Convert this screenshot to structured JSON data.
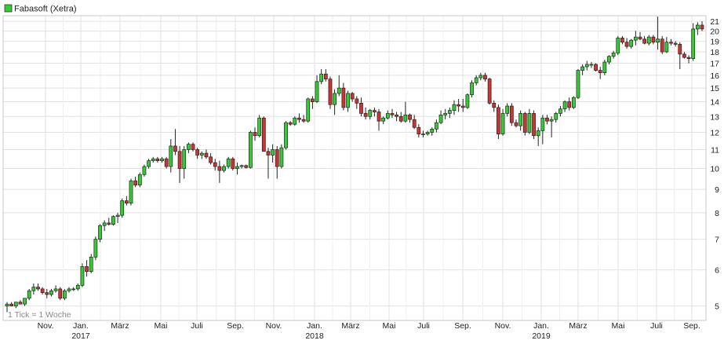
{
  "chart_data": {
    "type": "candlestick",
    "title": "Fabasoft (Xetra)",
    "interval_note": "1 Tick = 1 Woche",
    "y_scale": "log",
    "ylim": [
      4.65,
      21.6
    ],
    "y_ticks": [
      5,
      6,
      7,
      8,
      9,
      10,
      11,
      12,
      13,
      14,
      15,
      16,
      17,
      18,
      19,
      20,
      21
    ],
    "grid": true,
    "legend_swatch_color": "#33cc33",
    "up_color": "#33cc33",
    "down_color": "#cc3333",
    "x_ticks": [
      {
        "label": "Nov.",
        "year": ""
      },
      {
        "label": "Jan.",
        "year": "2017"
      },
      {
        "label": "März",
        "year": ""
      },
      {
        "label": "Mai",
        "year": ""
      },
      {
        "label": "Juli",
        "year": ""
      },
      {
        "label": "Sep.",
        "year": ""
      },
      {
        "label": "Nov.",
        "year": ""
      },
      {
        "label": "Jan.",
        "year": "2018"
      },
      {
        "label": "März",
        "year": ""
      },
      {
        "label": "Mai",
        "year": ""
      },
      {
        "label": "Juli",
        "year": ""
      },
      {
        "label": "Sep.",
        "year": ""
      },
      {
        "label": "Nov.",
        "year": ""
      },
      {
        "label": "Jan.",
        "year": "2019"
      },
      {
        "label": "März",
        "year": ""
      },
      {
        "label": "Mai",
        "year": ""
      },
      {
        "label": "Juli",
        "year": ""
      },
      {
        "label": "Sep.",
        "year": ""
      }
    ],
    "candles_ohlc": [
      [
        5.0,
        5.1,
        4.85,
        5.05
      ],
      [
        5.05,
        5.1,
        5.0,
        5.0
      ],
      [
        5.0,
        5.1,
        4.95,
        5.1
      ],
      [
        5.1,
        5.15,
        5.05,
        5.05
      ],
      [
        5.05,
        5.2,
        5.0,
        5.2
      ],
      [
        5.2,
        5.45,
        5.15,
        5.4
      ],
      [
        5.4,
        5.6,
        5.3,
        5.5
      ],
      [
        5.5,
        5.6,
        5.4,
        5.45
      ],
      [
        5.45,
        5.5,
        5.3,
        5.35
      ],
      [
        5.35,
        5.45,
        5.2,
        5.3
      ],
      [
        5.3,
        5.45,
        5.25,
        5.4
      ],
      [
        5.4,
        5.55,
        5.35,
        5.45
      ],
      [
        5.45,
        5.5,
        5.15,
        5.2
      ],
      [
        5.2,
        5.45,
        5.15,
        5.4
      ],
      [
        5.4,
        5.5,
        5.35,
        5.45
      ],
      [
        5.45,
        5.5,
        5.4,
        5.45
      ],
      [
        5.45,
        5.6,
        5.4,
        5.55
      ],
      [
        5.55,
        6.2,
        5.5,
        6.1
      ],
      [
        6.1,
        6.3,
        5.8,
        5.95
      ],
      [
        5.95,
        6.5,
        5.9,
        6.4
      ],
      [
        6.4,
        7.1,
        6.3,
        7.0
      ],
      [
        7.0,
        7.55,
        6.9,
        7.5
      ],
      [
        7.5,
        7.7,
        7.3,
        7.6
      ],
      [
        7.6,
        7.8,
        7.5,
        7.55
      ],
      [
        7.55,
        7.9,
        7.5,
        7.85
      ],
      [
        7.85,
        8.0,
        7.6,
        7.9
      ],
      [
        7.9,
        8.6,
        7.8,
        8.5
      ],
      [
        8.5,
        8.7,
        8.3,
        8.4
      ],
      [
        8.4,
        9.5,
        8.3,
        9.4
      ],
      [
        9.4,
        9.6,
        9.1,
        9.2
      ],
      [
        9.2,
        9.8,
        9.1,
        9.7
      ],
      [
        9.7,
        10.2,
        9.6,
        10.1
      ],
      [
        10.1,
        10.5,
        10.0,
        10.4
      ],
      [
        10.4,
        10.6,
        10.3,
        10.5
      ],
      [
        10.5,
        10.6,
        10.3,
        10.4
      ],
      [
        10.4,
        10.6,
        10.3,
        10.5
      ],
      [
        10.5,
        10.6,
        10.0,
        10.1
      ],
      [
        10.1,
        11.6,
        9.8,
        11.2
      ],
      [
        11.2,
        12.2,
        10.7,
        10.9
      ],
      [
        10.9,
        11.2,
        9.3,
        10.0
      ],
      [
        10.0,
        11.2,
        9.5,
        11.0
      ],
      [
        11.0,
        11.4,
        10.8,
        11.3
      ],
      [
        11.3,
        11.4,
        10.9,
        11.0
      ],
      [
        11.0,
        11.1,
        10.5,
        10.7
      ],
      [
        10.7,
        10.9,
        10.5,
        10.8
      ],
      [
        10.8,
        11.0,
        10.5,
        10.6
      ],
      [
        10.6,
        10.8,
        10.2,
        10.3
      ],
      [
        10.3,
        10.5,
        9.9,
        10.1
      ],
      [
        10.1,
        10.4,
        9.3,
        9.9
      ],
      [
        9.9,
        10.2,
        9.8,
        10.1
      ],
      [
        10.1,
        10.6,
        10.0,
        10.5
      ],
      [
        10.5,
        10.6,
        9.9,
        10.0
      ],
      [
        10.0,
        10.3,
        9.7,
        10.1
      ],
      [
        10.1,
        10.2,
        10.0,
        10.15
      ],
      [
        10.15,
        10.2,
        10.0,
        10.05
      ],
      [
        10.05,
        12.1,
        10.0,
        12.0
      ],
      [
        12.0,
        12.3,
        11.5,
        11.8
      ],
      [
        11.8,
        13.1,
        11.7,
        12.9
      ],
      [
        12.9,
        13.0,
        11.0,
        10.9
      ],
      [
        10.9,
        11.1,
        9.5,
        10.7
      ],
      [
        10.7,
        11.3,
        10.3,
        11.0
      ],
      [
        11.0,
        11.2,
        9.5,
        10.1
      ],
      [
        10.1,
        11.3,
        10.0,
        11.1
      ],
      [
        11.1,
        12.7,
        11.0,
        12.6
      ],
      [
        12.6,
        12.7,
        12.4,
        12.5
      ],
      [
        12.5,
        13.0,
        12.4,
        12.9
      ],
      [
        12.9,
        13.2,
        12.6,
        12.8
      ],
      [
        12.8,
        13.1,
        12.6,
        12.7
      ],
      [
        12.7,
        14.3,
        12.6,
        14.2
      ],
      [
        14.2,
        14.4,
        13.5,
        14.0
      ],
      [
        14.0,
        16.0,
        13.9,
        15.5
      ],
      [
        15.5,
        16.5,
        15.3,
        16.1
      ],
      [
        16.1,
        16.5,
        15.5,
        15.7
      ],
      [
        15.7,
        15.9,
        13.5,
        13.8
      ],
      [
        13.8,
        14.9,
        13.1,
        14.6
      ],
      [
        14.6,
        16.0,
        14.4,
        15.0
      ],
      [
        15.0,
        15.4,
        13.4,
        13.6
      ],
      [
        13.6,
        14.8,
        13.3,
        14.6
      ],
      [
        14.6,
        14.7,
        14.0,
        14.2
      ],
      [
        14.2,
        14.4,
        13.5,
        13.9
      ],
      [
        13.9,
        14.3,
        13.0,
        13.2
      ],
      [
        13.2,
        13.6,
        12.8,
        13.0
      ],
      [
        13.0,
        13.5,
        12.8,
        13.4
      ],
      [
        13.4,
        13.6,
        13.0,
        13.3
      ],
      [
        13.3,
        13.5,
        12.1,
        12.7
      ],
      [
        12.7,
        13.0,
        12.5,
        12.9
      ],
      [
        12.9,
        13.4,
        12.8,
        13.2
      ],
      [
        13.2,
        13.5,
        12.9,
        13.1
      ],
      [
        13.1,
        13.3,
        12.7,
        13.0
      ],
      [
        13.0,
        13.3,
        12.6,
        12.7
      ],
      [
        12.7,
        14.0,
        12.6,
        13.1
      ],
      [
        13.1,
        13.2,
        12.6,
        12.8
      ],
      [
        12.8,
        13.1,
        12.2,
        12.3
      ],
      [
        12.3,
        12.5,
        11.7,
        11.9
      ],
      [
        11.9,
        12.1,
        11.7,
        11.9
      ],
      [
        11.9,
        12.1,
        11.8,
        12.0
      ],
      [
        12.0,
        12.3,
        11.8,
        12.2
      ],
      [
        12.2,
        12.8,
        12.0,
        12.6
      ],
      [
        12.6,
        13.4,
        12.5,
        13.1
      ],
      [
        13.1,
        13.5,
        12.8,
        13.2
      ],
      [
        13.2,
        13.6,
        12.9,
        13.4
      ],
      [
        13.4,
        14.1,
        13.1,
        13.8
      ],
      [
        13.8,
        14.2,
        13.3,
        13.7
      ],
      [
        13.7,
        14.2,
        13.3,
        13.6
      ],
      [
        13.6,
        14.6,
        13.5,
        14.5
      ],
      [
        14.5,
        15.6,
        14.3,
        15.4
      ],
      [
        15.4,
        16.0,
        15.2,
        15.8
      ],
      [
        15.8,
        16.2,
        15.6,
        16.0
      ],
      [
        16.0,
        16.2,
        15.5,
        15.7
      ],
      [
        15.7,
        15.8,
        13.8,
        13.9
      ],
      [
        13.9,
        14.1,
        13.3,
        13.6
      ],
      [
        13.6,
        13.8,
        11.6,
        11.9
      ],
      [
        11.9,
        13.5,
        11.8,
        13.2
      ],
      [
        13.2,
        13.9,
        13.0,
        13.7
      ],
      [
        13.7,
        13.9,
        12.4,
        12.6
      ],
      [
        12.6,
        12.8,
        12.3,
        12.4
      ],
      [
        12.4,
        13.4,
        12.1,
        13.2
      ],
      [
        13.2,
        13.3,
        11.8,
        12.0
      ],
      [
        12.0,
        13.5,
        11.9,
        13.2
      ],
      [
        13.2,
        13.4,
        11.6,
        11.8
      ],
      [
        11.8,
        12.3,
        11.2,
        12.1
      ],
      [
        12.1,
        13.1,
        11.3,
        12.9
      ],
      [
        12.9,
        13.1,
        12.5,
        12.7
      ],
      [
        12.7,
        13.0,
        11.7,
        12.8
      ],
      [
        12.8,
        13.3,
        12.6,
        13.2
      ],
      [
        13.2,
        13.7,
        13.0,
        13.5
      ],
      [
        13.5,
        14.1,
        13.3,
        14.0
      ],
      [
        14.0,
        14.3,
        13.4,
        13.6
      ],
      [
        13.6,
        14.4,
        13.5,
        14.3
      ],
      [
        14.3,
        16.5,
        14.2,
        16.4
      ],
      [
        16.4,
        16.9,
        16.0,
        16.7
      ],
      [
        16.7,
        17.2,
        16.4,
        16.9
      ],
      [
        16.9,
        17.1,
        16.6,
        16.9
      ],
      [
        16.9,
        17.0,
        16.3,
        16.4
      ],
      [
        16.4,
        16.7,
        15.7,
        16.2
      ],
      [
        16.2,
        17.3,
        16.0,
        17.1
      ],
      [
        17.1,
        17.7,
        16.9,
        17.6
      ],
      [
        17.6,
        18.1,
        17.4,
        17.9
      ],
      [
        17.9,
        19.5,
        17.7,
        19.3
      ],
      [
        19.3,
        19.5,
        18.7,
        18.9
      ],
      [
        18.9,
        19.3,
        18.3,
        18.5
      ],
      [
        18.5,
        19.2,
        18.3,
        19.1
      ],
      [
        19.1,
        20.0,
        18.6,
        19.4
      ],
      [
        19.4,
        19.9,
        19.1,
        19.2
      ],
      [
        19.2,
        19.5,
        18.7,
        18.8
      ],
      [
        18.8,
        19.6,
        18.6,
        19.4
      ],
      [
        19.4,
        19.6,
        18.7,
        18.9
      ],
      [
        18.9,
        21.5,
        18.2,
        19.2
      ],
      [
        19.2,
        19.5,
        17.8,
        18.0
      ],
      [
        18.0,
        19.4,
        17.9,
        18.9
      ],
      [
        18.9,
        19.2,
        18.6,
        18.8
      ],
      [
        18.8,
        19.0,
        18.5,
        18.7
      ],
      [
        18.7,
        18.9,
        16.5,
        17.8
      ],
      [
        17.8,
        18.0,
        17.4,
        17.5
      ],
      [
        17.5,
        17.7,
        17.0,
        17.4
      ],
      [
        17.4,
        20.8,
        17.2,
        20.2
      ],
      [
        20.2,
        20.9,
        19.6,
        20.6
      ],
      [
        20.6,
        21.0,
        20.0,
        20.2
      ]
    ]
  }
}
